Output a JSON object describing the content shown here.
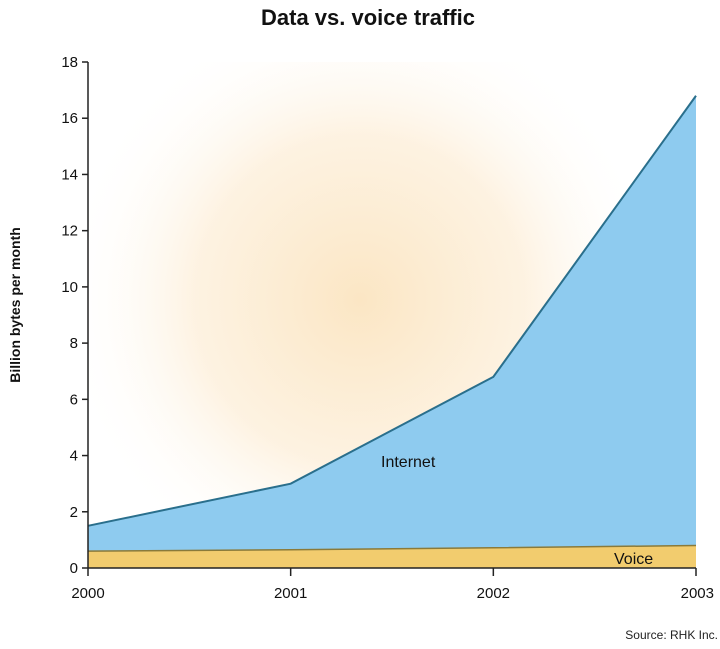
{
  "chart_data": {
    "type": "area",
    "title": "Data vs. voice traffic",
    "ylabel": "Billion bytes per month",
    "xlabel": "",
    "x": [
      "2000",
      "2001",
      "2002",
      "2003"
    ],
    "ylim": [
      0,
      18
    ],
    "yticks": [
      "0",
      "2",
      "4",
      "6",
      "8",
      "10",
      "12",
      "14",
      "16",
      "18"
    ],
    "stacked": true,
    "series": [
      {
        "name": "Voice",
        "values": [
          0.6,
          0.65,
          0.72,
          0.8
        ],
        "color": "#f2cc6e",
        "line_color": "#8a7a3a"
      },
      {
        "name": "Internet",
        "values": [
          1.5,
          3.0,
          6.8,
          16.8
        ],
        "color": "#8ecbef",
        "line_color": "#2a6f8c"
      }
    ],
    "source": "Source: RHK Inc.",
    "background_color": "#fbe6c4",
    "grid": false
  }
}
